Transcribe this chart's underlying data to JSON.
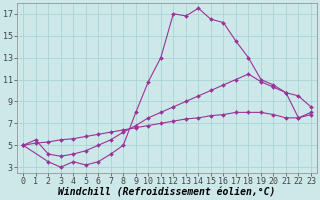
{
  "xlabel": "Windchill (Refroidissement éolien,°C)",
  "background_color": "#cce8e8",
  "grid_color": "#aad4d4",
  "line_color": "#993399",
  "xlim": [
    -0.5,
    23.5
  ],
  "ylim": [
    2.5,
    18
  ],
  "xticks": [
    0,
    1,
    2,
    3,
    4,
    5,
    6,
    7,
    8,
    9,
    10,
    11,
    12,
    13,
    14,
    15,
    16,
    17,
    18,
    19,
    20,
    21,
    22,
    23
  ],
  "yticks": [
    3,
    5,
    7,
    9,
    11,
    13,
    15,
    17
  ],
  "series": [
    {
      "x": [
        0,
        2,
        3,
        4,
        5,
        6,
        7,
        8,
        9,
        10,
        11,
        12,
        13,
        14,
        15,
        16,
        17,
        18,
        19,
        20,
        21,
        22,
        23
      ],
      "y": [
        5.0,
        3.5,
        3.0,
        3.5,
        3.2,
        3.5,
        4.2,
        5.0,
        8.0,
        10.8,
        13.0,
        17.0,
        16.8,
        17.5,
        16.5,
        16.2,
        14.5,
        13.0,
        11.0,
        10.5,
        9.8,
        9.5,
        8.5
      ]
    },
    {
      "x": [
        0,
        1,
        2,
        3,
        4,
        5,
        6,
        7,
        8,
        9,
        10,
        11,
        12,
        13,
        14,
        15,
        16,
        17,
        18,
        19,
        20,
        21,
        22,
        23
      ],
      "y": [
        5.0,
        5.5,
        4.2,
        4.0,
        4.2,
        4.5,
        5.0,
        5.5,
        6.2,
        6.8,
        7.5,
        8.0,
        8.5,
        9.0,
        9.5,
        10.0,
        10.5,
        11.0,
        11.5,
        10.8,
        10.3,
        9.8,
        7.5,
        7.8
      ]
    },
    {
      "x": [
        0,
        1,
        2,
        3,
        4,
        5,
        6,
        7,
        8,
        9,
        10,
        11,
        12,
        13,
        14,
        15,
        16,
        17,
        18,
        19,
        20,
        21,
        22,
        23
      ],
      "y": [
        5.0,
        5.2,
        5.3,
        5.5,
        5.6,
        5.8,
        6.0,
        6.2,
        6.4,
        6.6,
        6.8,
        7.0,
        7.2,
        7.4,
        7.5,
        7.7,
        7.8,
        8.0,
        8.0,
        8.0,
        7.8,
        7.5,
        7.5,
        8.0
      ]
    }
  ],
  "marker": "D",
  "marker_size": 2,
  "linewidth": 0.8,
  "xlabel_fontsize": 7,
  "tick_fontsize": 6
}
